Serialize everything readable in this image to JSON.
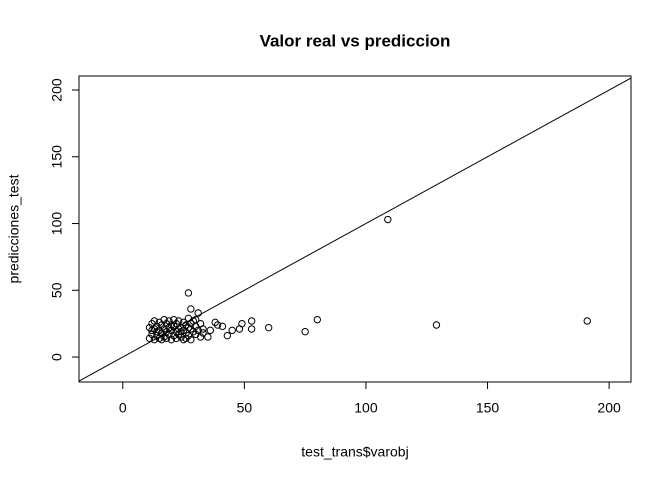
{
  "chart_data": {
    "type": "scatter",
    "title": "Valor real vs prediccion",
    "x_label": "test_trans$varobj",
    "y_label": "predicciones_test",
    "x": [
      11,
      11,
      12,
      12,
      12,
      13,
      13,
      13,
      14,
      14,
      14,
      15,
      15,
      15,
      16,
      16,
      16,
      17,
      17,
      17,
      18,
      18,
      18,
      19,
      19,
      19,
      20,
      20,
      20,
      21,
      21,
      21,
      22,
      22,
      22,
      23,
      23,
      23,
      24,
      24,
      24,
      25,
      25,
      25,
      26,
      26,
      26,
      27,
      27,
      27,
      28,
      28,
      28,
      29,
      29,
      30,
      30,
      31,
      32,
      33,
      109,
      27,
      28,
      129,
      191,
      80,
      75,
      60,
      53,
      53,
      49,
      48,
      45,
      43,
      41,
      39,
      38,
      36,
      35,
      33,
      31,
      30,
      32
    ],
    "y": [
      14,
      22,
      17,
      25,
      20,
      13,
      21,
      27,
      16,
      23,
      19,
      14,
      26,
      20,
      18,
      24,
      13,
      21,
      15,
      28,
      19,
      25,
      14,
      22,
      17,
      27,
      13,
      20,
      24,
      16,
      23,
      28,
      19,
      14,
      25,
      21,
      17,
      27,
      15,
      22,
      19,
      26,
      13,
      20,
      24,
      18,
      14,
      22,
      29,
      16,
      21,
      25,
      13,
      19,
      27,
      17,
      23,
      20,
      15,
      21,
      103,
      48,
      36,
      24,
      27,
      28,
      19,
      22,
      27,
      21,
      25,
      21,
      20,
      16,
      23,
      24,
      26,
      20,
      15,
      18,
      33,
      28,
      25
    ],
    "color": "#000000",
    "xlim": [
      -18,
      209
    ],
    "ylim": [
      -18.7,
      210.5
    ],
    "xticks": [
      0,
      50,
      100,
      150,
      200
    ],
    "yticks": [
      0,
      50,
      100,
      150,
      200
    ],
    "diagonal": true
  }
}
